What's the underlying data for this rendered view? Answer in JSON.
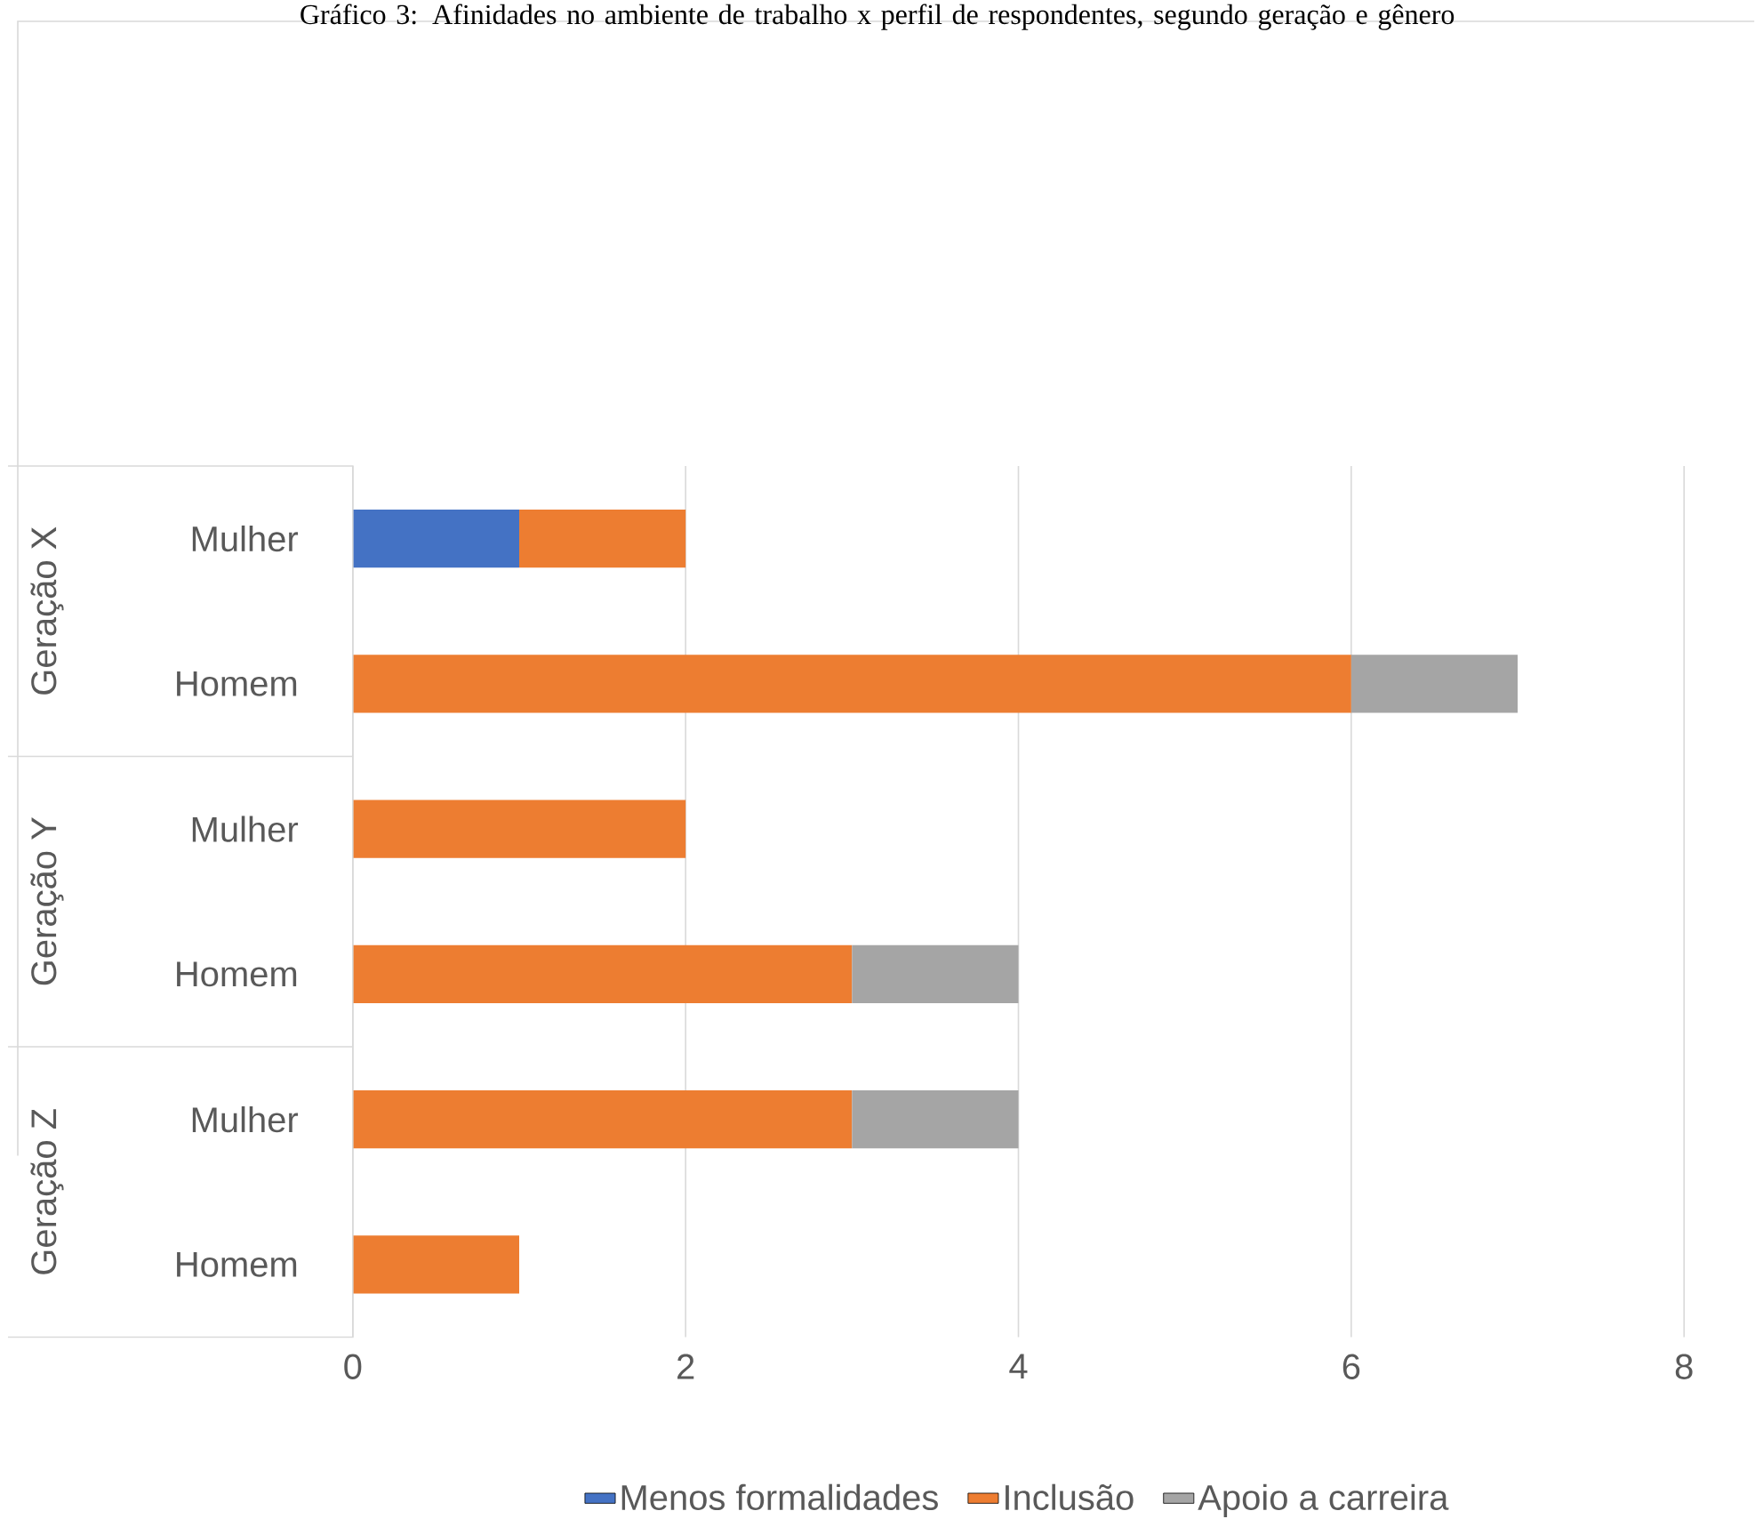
{
  "chart_data": {
    "type": "bar",
    "orientation": "horizontal",
    "stacked": true,
    "title": "Gráfico 3: Afinidades no ambiente de trabalho x perfil de respondentes, segundo geração e gênero",
    "categories": [
      "Mulher",
      "Homem",
      "Mulher",
      "Homem",
      "Mulher",
      "Homem"
    ],
    "annotations": [
      "Geração X",
      "Geração Y",
      "Geração Z"
    ],
    "series": [
      {
        "name": "Menos formalidades",
        "color": "#4472c4",
        "values": [
          1,
          null,
          null,
          null,
          null,
          null
        ]
      },
      {
        "name": "Inclusão",
        "color": "#ed7d31",
        "values": [
          1,
          6,
          2,
          3,
          3,
          1
        ]
      },
      {
        "name": "Apoio a carreira",
        "color": "#a5a5a5",
        "values": [
          null,
          1,
          null,
          1,
          1,
          null
        ]
      }
    ],
    "xlim": [
      0,
      8
    ],
    "xticks": [
      0,
      2,
      4,
      6,
      8
    ],
    "grid": "x",
    "legend": "bottom"
  }
}
